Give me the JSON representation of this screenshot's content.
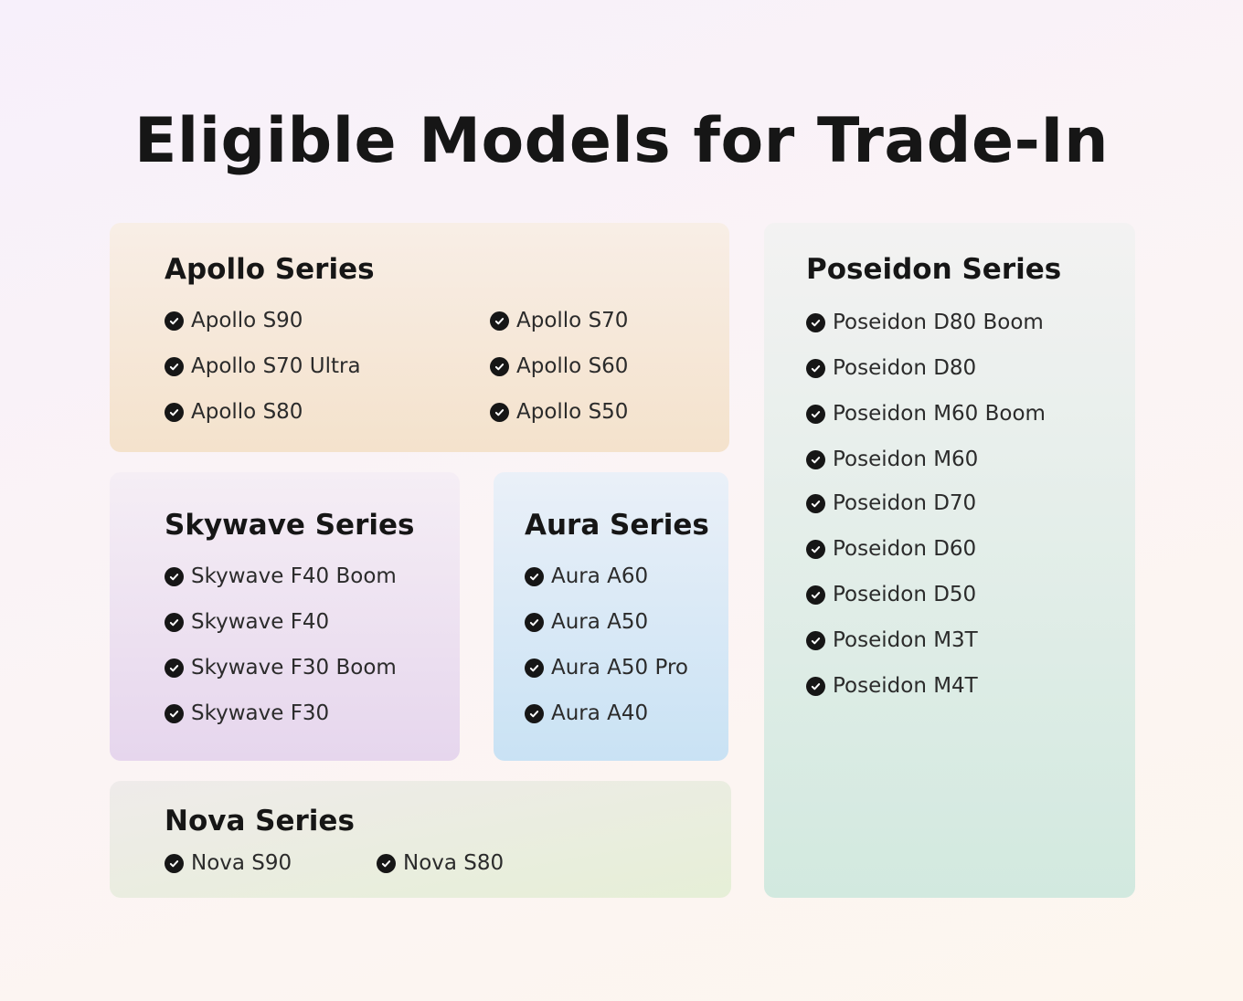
{
  "title": "Eligible Models for Trade-In",
  "icon": "check-circle-icon",
  "apollo": {
    "title": "Apollo Series",
    "items": [
      "Apollo S90",
      "Apollo S70 Ultra",
      "Apollo S80",
      "Apollo S70",
      "Apollo S60",
      "Apollo S50"
    ]
  },
  "skywave": {
    "title": "Skywave Series",
    "items": [
      "Skywave F40 Boom",
      "Skywave F40",
      "Skywave F30 Boom",
      "Skywave F30"
    ]
  },
  "aura": {
    "title": "Aura Series",
    "items": [
      "Aura A60",
      "Aura A50",
      "Aura A50 Pro",
      "Aura A40"
    ]
  },
  "nova": {
    "title": "Nova Series",
    "items": [
      "Nova S90",
      "Nova S80"
    ]
  },
  "poseidon": {
    "title": "Poseidon Series",
    "items": [
      "Poseidon D80 Boom",
      "Poseidon D80",
      "Poseidon M60 Boom",
      "Poseidon M60",
      "Poseidon D70",
      "Poseidon D60",
      "Poseidon D50",
      "Poseidon M3T",
      "Poseidon M4T"
    ]
  }
}
